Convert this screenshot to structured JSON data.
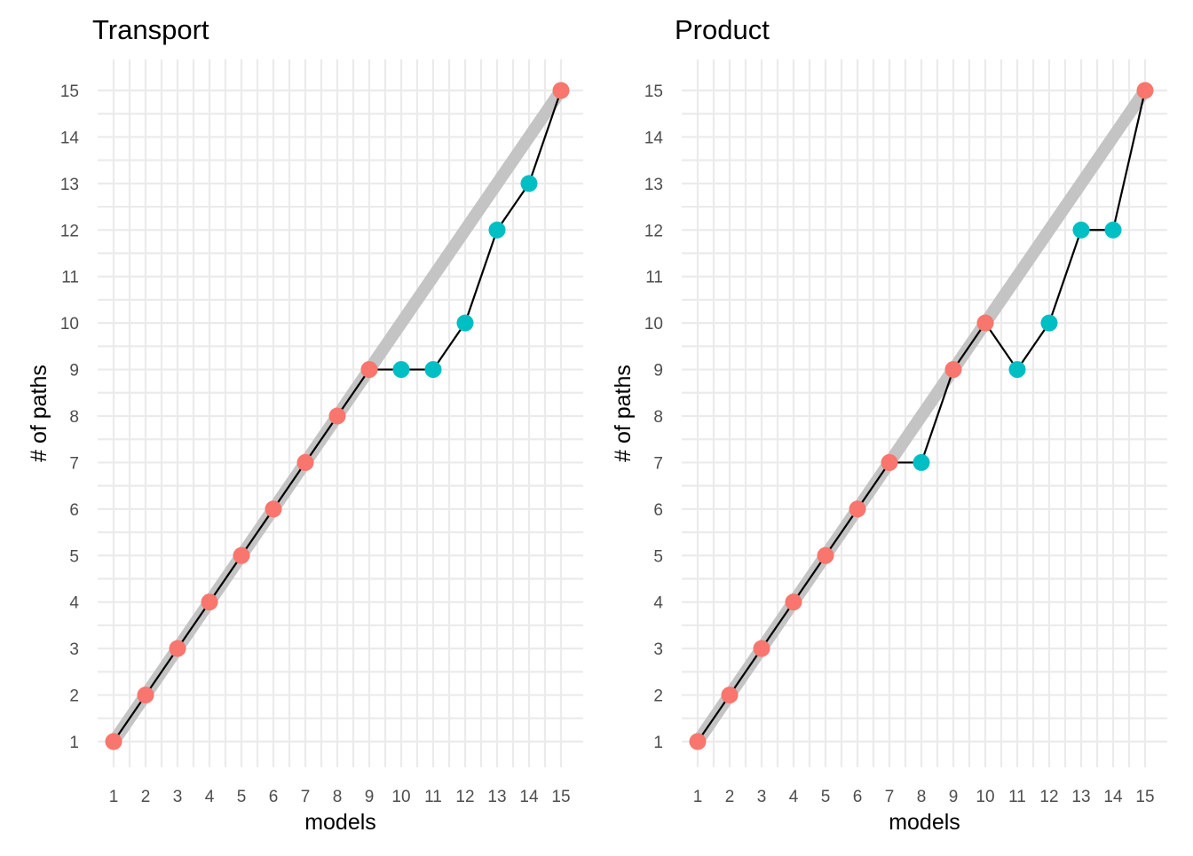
{
  "chart_data": [
    {
      "type": "line",
      "title": "Transport",
      "xlabel": "models",
      "ylabel": "# of paths",
      "x": [
        1,
        2,
        3,
        4,
        5,
        6,
        7,
        8,
        9,
        10,
        11,
        12,
        13,
        14,
        15
      ],
      "xlim": [
        1,
        15
      ],
      "ylim": [
        1,
        15
      ],
      "x_ticks": [
        "1",
        "2",
        "3",
        "4",
        "5",
        "6",
        "7",
        "8",
        "9",
        "10",
        "11",
        "12",
        "13",
        "14",
        "15"
      ],
      "y_ticks": [
        "1",
        "2",
        "3",
        "4",
        "5",
        "6",
        "7",
        "8",
        "9",
        "10",
        "11",
        "12",
        "13",
        "14",
        "15"
      ],
      "grid": true,
      "legend": "none",
      "reference_line": {
        "from": [
          1,
          1
        ],
        "to": [
          15,
          15
        ],
        "color": "#c4c4c4"
      },
      "series": [
        {
          "values": [
            1,
            2,
            3,
            4,
            5,
            6,
            7,
            8,
            9,
            9,
            9,
            10,
            12,
            13,
            15
          ],
          "line_color": "#000000",
          "point_colors": [
            "#f8766d",
            "#f8766d",
            "#f8766d",
            "#f8766d",
            "#f8766d",
            "#f8766d",
            "#f8766d",
            "#f8766d",
            "#f8766d",
            "#00bfc4",
            "#00bfc4",
            "#00bfc4",
            "#00bfc4",
            "#00bfc4",
            "#f8766d"
          ]
        }
      ]
    },
    {
      "type": "line",
      "title": "Product",
      "xlabel": "models",
      "ylabel": "# of paths",
      "x": [
        1,
        2,
        3,
        4,
        5,
        6,
        7,
        8,
        9,
        10,
        11,
        12,
        13,
        14,
        15
      ],
      "xlim": [
        1,
        15
      ],
      "ylim": [
        1,
        15
      ],
      "x_ticks": [
        "1",
        "2",
        "3",
        "4",
        "5",
        "6",
        "7",
        "8",
        "9",
        "10",
        "11",
        "12",
        "13",
        "14",
        "15"
      ],
      "y_ticks": [
        "1",
        "2",
        "3",
        "4",
        "5",
        "6",
        "7",
        "8",
        "9",
        "10",
        "11",
        "12",
        "13",
        "14",
        "15"
      ],
      "grid": true,
      "legend": "none",
      "reference_line": {
        "from": [
          1,
          1
        ],
        "to": [
          15,
          15
        ],
        "color": "#c4c4c4"
      },
      "series": [
        {
          "values": [
            1,
            2,
            3,
            4,
            5,
            6,
            7,
            7,
            9,
            10,
            9,
            10,
            12,
            12,
            15
          ],
          "line_color": "#000000",
          "point_colors": [
            "#f8766d",
            "#f8766d",
            "#f8766d",
            "#f8766d",
            "#f8766d",
            "#f8766d",
            "#f8766d",
            "#00bfc4",
            "#f8766d",
            "#f8766d",
            "#00bfc4",
            "#00bfc4",
            "#00bfc4",
            "#00bfc4",
            "#f8766d"
          ]
        }
      ]
    }
  ]
}
